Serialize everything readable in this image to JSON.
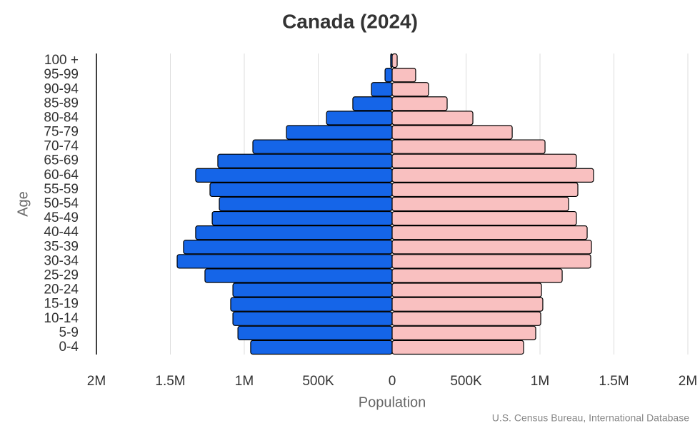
{
  "chart_data": {
    "type": "pyramid",
    "title": "Canada (2024)",
    "x_label": "Population",
    "y_label": "Age",
    "source": "U.S. Census Bureau, International Database",
    "categories": [
      "0-4",
      "5-9",
      "10-14",
      "15-19",
      "20-24",
      "25-29",
      "30-34",
      "35-39",
      "40-44",
      "45-49",
      "50-54",
      "55-59",
      "60-64",
      "65-69",
      "70-74",
      "75-79",
      "80-84",
      "85-89",
      "90-94",
      "95-99",
      "100 +"
    ],
    "series": [
      {
        "color": "#1565e8",
        "values": [
          -957000,
          -1043000,
          -1077000,
          -1092000,
          -1077000,
          -1266000,
          -1454000,
          -1411000,
          -1329000,
          -1217000,
          -1169000,
          -1232000,
          -1329000,
          -1179000,
          -942000,
          -715000,
          -444000,
          -266000,
          -140000,
          -48000,
          -10000
        ]
      },
      {
        "color": "#f9c0c0",
        "values": [
          889000,
          971000,
          1005000,
          1019000,
          1010000,
          1150000,
          1343000,
          1348000,
          1319000,
          1246000,
          1193000,
          1256000,
          1362000,
          1246000,
          1034000,
          812000,
          546000,
          372000,
          246000,
          159000,
          34000
        ]
      }
    ],
    "xlim": [
      -2000000,
      2000000
    ],
    "xticks": [
      {
        "value": -2000000,
        "label": "2M"
      },
      {
        "value": -1500000,
        "label": "1.5M"
      },
      {
        "value": -1000000,
        "label": "1M"
      },
      {
        "value": -500000,
        "label": "500K"
      },
      0,
      {
        "value": 500000,
        "label": "500K"
      },
      {
        "value": 1000000,
        "label": "1M"
      },
      {
        "value": 1500000,
        "label": "1.5M"
      },
      {
        "value": 2000000,
        "label": "2M"
      }
    ],
    "grid": true
  }
}
